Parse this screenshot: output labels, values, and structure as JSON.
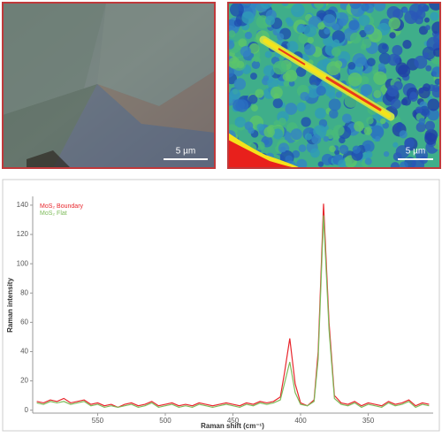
{
  "images": [
    {
      "scale_label": "5 µm"
    },
    {
      "scale_label": "5 µm"
    }
  ],
  "chart_data": {
    "type": "line",
    "x_label": "Raman shift (cm⁻¹)",
    "y_label": "Raman intensity",
    "x": [
      595,
      590,
      585,
      580,
      575,
      570,
      565,
      560,
      555,
      550,
      545,
      540,
      535,
      530,
      525,
      520,
      515,
      510,
      505,
      500,
      495,
      490,
      485,
      480,
      475,
      470,
      465,
      460,
      455,
      450,
      445,
      440,
      435,
      430,
      425,
      420,
      415,
      412,
      408,
      404,
      400,
      395,
      390,
      387,
      383,
      379,
      375,
      370,
      365,
      360,
      355,
      350,
      345,
      340,
      335,
      330,
      325,
      320,
      315,
      310,
      305
    ],
    "series": [
      {
        "name": "MoS₂ Boundary",
        "color": "#e8262c",
        "values": [
          6,
          5,
          7,
          6,
          8,
          5,
          6,
          7,
          4,
          5,
          3,
          4,
          2,
          4,
          5,
          3,
          4,
          6,
          3,
          4,
          5,
          3,
          4,
          3,
          5,
          4,
          3,
          4,
          5,
          4,
          3,
          5,
          4,
          6,
          5,
          6,
          9,
          25,
          49,
          18,
          5,
          3,
          7,
          40,
          141,
          60,
          10,
          5,
          4,
          6,
          3,
          5,
          4,
          3,
          6,
          4,
          5,
          7,
          3,
          5,
          4
        ]
      },
      {
        "name": "MoS₂ Flat",
        "color": "#7dbb5a",
        "values": [
          5,
          4,
          6,
          5,
          6,
          4,
          5,
          6,
          3,
          4,
          2,
          3,
          2,
          3,
          4,
          2,
          3,
          5,
          2,
          3,
          4,
          2,
          3,
          2,
          4,
          3,
          2,
          3,
          4,
          3,
          2,
          4,
          3,
          5,
          4,
          5,
          7,
          18,
          33,
          12,
          4,
          3,
          6,
          35,
          133,
          55,
          8,
          4,
          3,
          5,
          2,
          4,
          3,
          2,
          5,
          3,
          4,
          6,
          2,
          4,
          3
        ]
      }
    ],
    "xlim": [
      598,
      302
    ],
    "ylim": [
      -2,
      146
    ],
    "xticks": [
      550,
      500,
      450,
      400,
      350
    ],
    "yticks": [
      0,
      20,
      40,
      60,
      80,
      100,
      120,
      140
    ]
  }
}
